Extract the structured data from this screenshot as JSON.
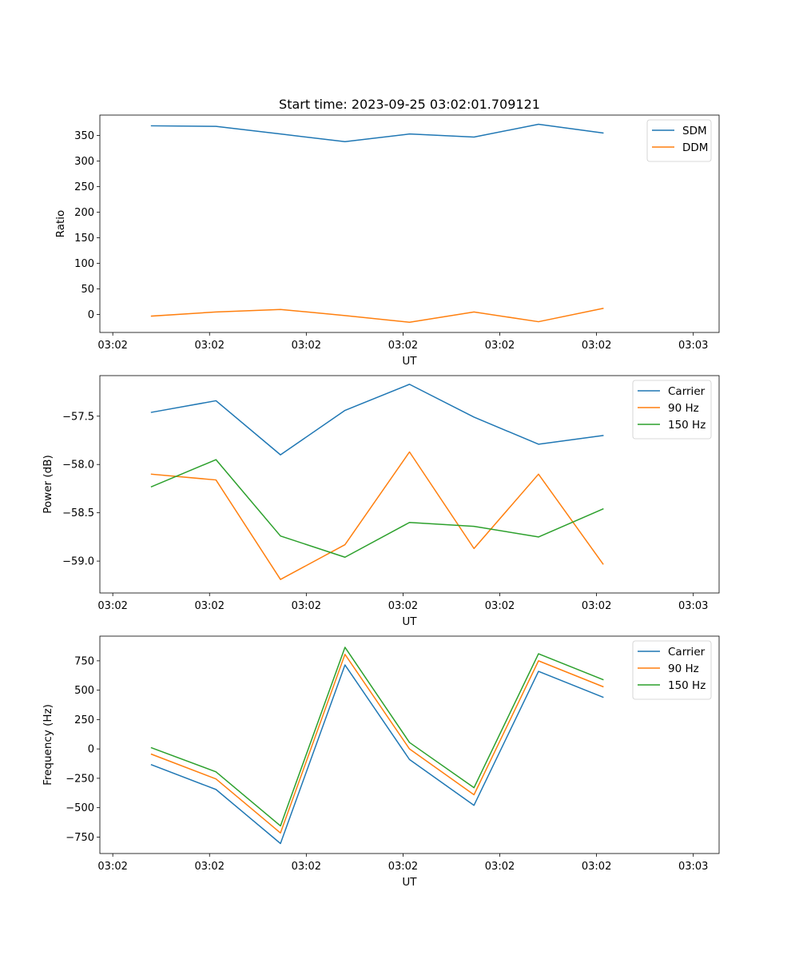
{
  "figure_title": "Start time: 2023-09-25 03:02:01.709121",
  "colors": {
    "series1": "#1f77b4",
    "series2": "#ff7f0e",
    "series3": "#2ca02c"
  },
  "chart_data": [
    {
      "type": "line",
      "title": "Start time: 2023-09-25 03:02:01.709121",
      "xlabel": "UT",
      "ylabel": "Ratio",
      "xlim": [
        -0.1,
        4.7
      ],
      "ylim": [
        -35,
        390
      ],
      "x": [
        0.3,
        0.8,
        1.3,
        1.8,
        2.3,
        2.8,
        3.3,
        3.8
      ],
      "xticks": [
        0,
        0.75,
        1.5,
        2.25,
        3,
        3.75,
        4.5
      ],
      "xtick_labels": [
        "03:02",
        "03:02",
        "03:02",
        "03:02",
        "03:02",
        "03:02",
        "03:03"
      ],
      "yticks": [
        0,
        50,
        100,
        150,
        200,
        250,
        300,
        350
      ],
      "ytick_labels": [
        "0",
        "50",
        "100",
        "150",
        "200",
        "250",
        "300",
        "350"
      ],
      "legend_position": "top-right",
      "series": [
        {
          "name": "SDM",
          "color": "#1f77b4",
          "values": [
            369,
            368,
            353,
            338,
            353,
            347,
            372,
            355
          ]
        },
        {
          "name": "DDM",
          "color": "#ff7f0e",
          "values": [
            -3,
            5,
            10,
            -2,
            -15,
            5,
            -14,
            12
          ]
        }
      ]
    },
    {
      "type": "line",
      "title": "",
      "xlabel": "UT",
      "ylabel": "Power (dB)",
      "xlim": [
        -0.1,
        4.7
      ],
      "ylim": [
        -59.33,
        -57.08
      ],
      "x": [
        0.3,
        0.8,
        1.3,
        1.8,
        2.3,
        2.8,
        3.3,
        3.8
      ],
      "xticks": [
        0,
        0.75,
        1.5,
        2.25,
        3,
        3.75,
        4.5
      ],
      "xtick_labels": [
        "03:02",
        "03:02",
        "03:02",
        "03:02",
        "03:02",
        "03:02",
        "03:03"
      ],
      "yticks": [
        -59.0,
        -58.5,
        -58.0,
        -57.5
      ],
      "ytick_labels": [
        "−59.0",
        "−58.5",
        "−58.0",
        "−57.5"
      ],
      "legend_position": "top-right",
      "series": [
        {
          "name": "Carrier",
          "color": "#1f77b4",
          "values": [
            -57.46,
            -57.34,
            -57.9,
            -57.44,
            -57.17,
            -57.51,
            -57.79,
            -57.7
          ]
        },
        {
          "name": "90 Hz",
          "color": "#ff7f0e",
          "values": [
            -58.1,
            -58.16,
            -59.19,
            -58.83,
            -57.87,
            -58.87,
            -58.1,
            -59.03
          ]
        },
        {
          "name": "150 Hz",
          "color": "#2ca02c",
          "values": [
            -58.23,
            -57.95,
            -58.74,
            -58.96,
            -58.6,
            -58.64,
            -58.75,
            -58.46
          ]
        }
      ]
    },
    {
      "type": "line",
      "title": "",
      "xlabel": "UT",
      "ylabel": "Frequency (Hz)",
      "xlim": [
        -0.1,
        4.7
      ],
      "ylim": [
        -890,
        960
      ],
      "x": [
        0.3,
        0.8,
        1.3,
        1.8,
        2.3,
        2.8,
        3.3,
        3.8
      ],
      "xticks": [
        0,
        0.75,
        1.5,
        2.25,
        3,
        3.75,
        4.5
      ],
      "xtick_labels": [
        "03:02",
        "03:02",
        "03:02",
        "03:02",
        "03:02",
        "03:02",
        "03:03"
      ],
      "yticks": [
        -750,
        -500,
        -250,
        0,
        250,
        500,
        750
      ],
      "ytick_labels": [
        "−750",
        "−500",
        "−250",
        "0",
        "250",
        "500",
        "750"
      ],
      "legend_position": "top-right",
      "series": [
        {
          "name": "Carrier",
          "color": "#1f77b4",
          "values": [
            -135,
            -345,
            -805,
            715,
            -90,
            -480,
            660,
            440
          ]
        },
        {
          "name": "90 Hz",
          "color": "#ff7f0e",
          "values": [
            -45,
            -255,
            -715,
            805,
            0,
            -390,
            750,
            530
          ]
        },
        {
          "name": "150 Hz",
          "color": "#2ca02c",
          "values": [
            10,
            -195,
            -655,
            865,
            55,
            -330,
            810,
            590
          ]
        }
      ]
    }
  ]
}
